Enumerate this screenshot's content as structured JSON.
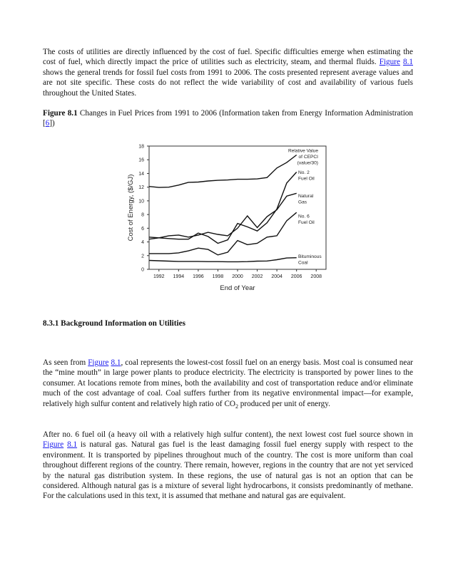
{
  "paragraph1": {
    "text_a": "The costs of utilities are directly influenced by the cost of fuel. Specific difficulties emerge when estimating the cost of fuel, which directly impact the price of utilities such as electricity, steam, and thermal fluids. ",
    "link_figure": "Figure",
    "link_number": "8.1",
    "text_b": " shows the general trends for fossil fuel costs from 1991 to 2006. The costs presented represent average values and are not site specific. These costs do not reflect the wide variability of cost and availability of various fuels throughout the United States."
  },
  "caption": {
    "label": "Figure 8.1",
    "text": " Changes in Fuel Prices from 1991 to 2006 (Information taken from Energy Information Administration [",
    "ref": "6",
    "text_end": "])"
  },
  "heading": "8.3.1 Background Information on Utilities",
  "paragraph2": {
    "text_a": "As seen from ",
    "link_figure": "Figure",
    "link_number": "8.1",
    "text_b": ", coal represents the lowest-cost fossil fuel on an energy basis. Most coal is consumed near the “mine mouth” in large power plants to produce electricity. The electricity is transported by power lines to the consumer. At locations remote from mines, both the availability and cost of transportation reduce and/or eliminate much of the cost advantage of coal. Coal suffers further from its negative environmental impact—for example, relatively high sulfur content and relatively high ratio of ",
    "co": "CO",
    "sub": "2",
    "text_c": " produced per unit of energy."
  },
  "paragraph3": {
    "text_a": "After no. 6 fuel oil (a heavy oil with a relatively high sulfur content), the next lowest cost fuel source shown in ",
    "link_figure": "Figure",
    "link_number": "8.1",
    "text_b": " is natural gas. Natural gas fuel is the least damaging fossil fuel energy supply with respect to the environment. It is transported by pipelines throughout much of the country. The cost is more uniform than coal throughout different regions of the country. There remain, however, regions in the country that are not yet serviced by the natural gas distribution system. In these regions, the use of natural gas is not an option that can be considered. Although natural gas is a mixture of several light hydrocarbons, it consists predominantly of methane. For the calculations used in this text, it is assumed that methane and natural gas are equivalent."
  },
  "colors": {
    "link": "#1a1aee",
    "line": "#111111"
  },
  "chart_data": {
    "type": "line",
    "title": "",
    "xlabel": "End of Year",
    "ylabel": "Cost of Energy, ($/GJ)",
    "xlim": [
      1991,
      2009
    ],
    "ylim": [
      0,
      18
    ],
    "xticks": [
      1992,
      1994,
      1996,
      1998,
      2000,
      2002,
      2004,
      2006,
      2008
    ],
    "yticks": [
      0,
      2,
      4,
      6,
      8,
      10,
      12,
      14,
      16,
      18
    ],
    "grid": false,
    "legend": "inline labels at right end of lines",
    "x": [
      1991,
      1992,
      1993,
      1994,
      1995,
      1996,
      1997,
      1998,
      1999,
      2000,
      2001,
      2002,
      2003,
      2004,
      2005,
      2006
    ],
    "series": [
      {
        "name": "Relative Value of CEPCI (value/30)",
        "label_lines": [
          "Relative Value",
          "of CEPCI",
          "(value/30)"
        ],
        "values": [
          12.1,
          11.95,
          12.0,
          12.3,
          12.7,
          12.75,
          12.9,
          13.0,
          13.05,
          13.15,
          13.15,
          13.2,
          13.4,
          14.8,
          15.6,
          16.7
        ]
      },
      {
        "name": "No. 2 Fuel Oil",
        "label_lines": [
          "No. 2",
          "Fuel Oil"
        ],
        "values": [
          4.7,
          4.6,
          4.5,
          4.4,
          4.4,
          5.3,
          4.8,
          3.8,
          4.3,
          6.7,
          6.2,
          5.6,
          6.8,
          8.8,
          12.6,
          14.2
        ]
      },
      {
        "name": "Natural Gas",
        "label_lines": [
          "Natural",
          "Gas"
        ],
        "values": [
          4.4,
          4.6,
          4.9,
          5.0,
          4.7,
          5.0,
          5.4,
          5.1,
          4.9,
          6.0,
          7.8,
          6.1,
          7.7,
          8.7,
          10.7,
          11.1
        ]
      },
      {
        "name": "No. 6 Fuel Oil",
        "label_lines": [
          "No. 6",
          "Fuel Oil"
        ],
        "values": [
          2.3,
          2.3,
          2.3,
          2.4,
          2.7,
          3.1,
          2.9,
          2.1,
          2.5,
          4.2,
          3.6,
          3.8,
          4.7,
          4.9,
          7.1,
          8.3
        ]
      },
      {
        "name": "Bituminous Coal",
        "label_lines": [
          "Bituminous",
          "Coal"
        ],
        "values": [
          1.3,
          1.25,
          1.2,
          1.15,
          1.15,
          1.15,
          1.12,
          1.12,
          1.1,
          1.1,
          1.12,
          1.2,
          1.22,
          1.4,
          1.65,
          1.7
        ]
      }
    ]
  }
}
